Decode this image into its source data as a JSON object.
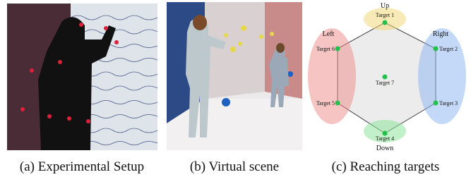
{
  "figure": {
    "panels": [
      {
        "caption": "(a) Experimental Setup"
      },
      {
        "caption": "(b) Virtual scene"
      },
      {
        "caption": "(c) Reaching targets"
      }
    ],
    "diagram": {
      "directions": {
        "up": "Up",
        "down": "Down",
        "left": "Left",
        "right": "Right"
      },
      "targets": [
        "Target 1",
        "Target 2",
        "Target 3",
        "Target 4",
        "Target 5",
        "Target 6",
        "Target 7"
      ]
    }
  }
}
